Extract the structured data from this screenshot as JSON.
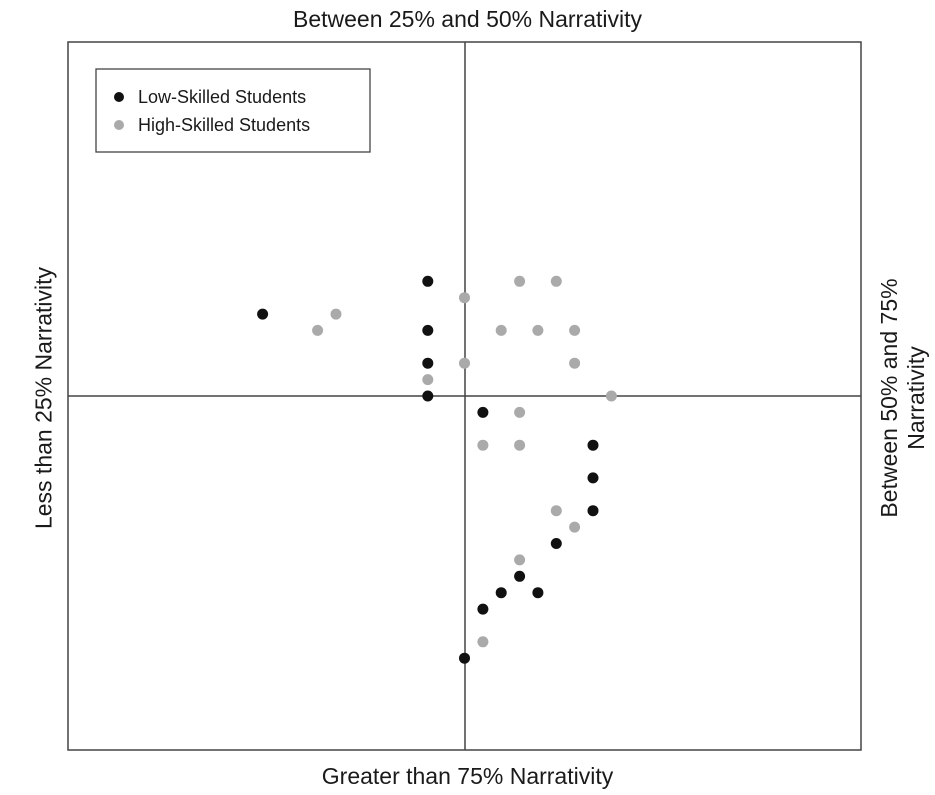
{
  "chart_data": {
    "type": "scatter",
    "title": "",
    "axis_labels": {
      "top": "Between 25% and 50% Narrativity",
      "bottom": "Greater than 75% Narrativity",
      "left": "Less than 25% Narrativity",
      "right": [
        "Between 50% and 75%",
        "Narrativity"
      ]
    },
    "xlim": [
      -10.8,
      10.8
    ],
    "ylim": [
      -10.8,
      10.8
    ],
    "grid": false,
    "legend_position": "top-left",
    "series": [
      {
        "name": "Low-Skilled Students",
        "color": "#111111",
        "points": [
          [
            -5.5,
            2.5
          ],
          [
            -1.0,
            3.5
          ],
          [
            -1.0,
            2.0
          ],
          [
            -1.0,
            1.0
          ],
          [
            -1.0,
            0.0
          ],
          [
            0.5,
            -0.5
          ],
          [
            3.5,
            -1.5
          ],
          [
            3.5,
            -2.5
          ],
          [
            3.5,
            -3.5
          ],
          [
            2.5,
            -4.5
          ],
          [
            1.5,
            -5.5
          ],
          [
            1.0,
            -6.0
          ],
          [
            2.0,
            -6.0
          ],
          [
            0.5,
            -6.5
          ],
          [
            0.0,
            -8.0
          ]
        ]
      },
      {
        "name": "High-Skilled Students",
        "color": "#aaaaaa",
        "points": [
          [
            -4.0,
            2.0
          ],
          [
            -3.5,
            2.5
          ],
          [
            0.0,
            3.0
          ],
          [
            1.5,
            3.5
          ],
          [
            2.5,
            3.5
          ],
          [
            1.0,
            2.0
          ],
          [
            2.0,
            2.0
          ],
          [
            3.0,
            2.0
          ],
          [
            0.0,
            1.0
          ],
          [
            3.0,
            1.0
          ],
          [
            -1.0,
            0.5
          ],
          [
            4.0,
            0.0
          ],
          [
            1.5,
            -0.5
          ],
          [
            0.5,
            -1.5
          ],
          [
            1.5,
            -1.5
          ],
          [
            2.5,
            -3.5
          ],
          [
            3.0,
            -4.0
          ],
          [
            1.5,
            -5.0
          ],
          [
            0.5,
            -7.5
          ]
        ]
      }
    ]
  }
}
